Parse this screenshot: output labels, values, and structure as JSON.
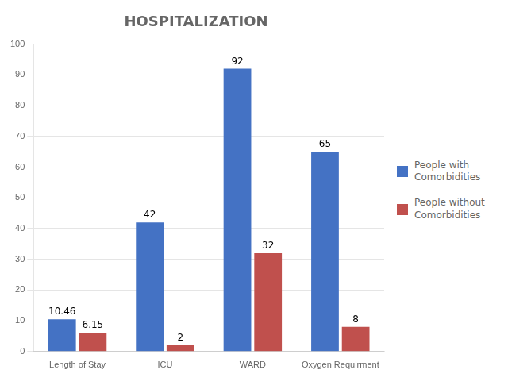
{
  "chart_data": {
    "type": "bar",
    "title": "HOSPITALIZATION",
    "categories": [
      "Length of Stay",
      "ICU",
      "WARD",
      "Oxygen Requirment"
    ],
    "series": [
      {
        "name": "People with\nComorbidities",
        "color": "#4472C4",
        "values": [
          10.46,
          42,
          92,
          65
        ]
      },
      {
        "name": "People without\nComorbidities",
        "color": "#C0504D",
        "values": [
          6.15,
          2,
          32,
          8
        ]
      }
    ],
    "ylim": [
      0,
      100
    ],
    "yticks": [
      0,
      10,
      20,
      30,
      40,
      50,
      60,
      70,
      80,
      90,
      100
    ],
    "grid": true,
    "legend": "right",
    "data_labels": true
  }
}
